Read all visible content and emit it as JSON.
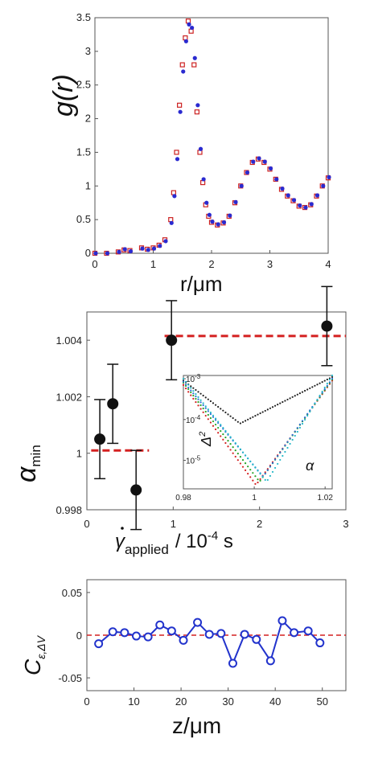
{
  "chart_data": [
    {
      "type": "scatter",
      "panel": "top",
      "xlabel": "r/μm",
      "ylabel": "g(r)",
      "xlim": [
        0,
        4
      ],
      "ylim": [
        0,
        3.5
      ],
      "xticks": [
        "0",
        "1",
        "2",
        "3",
        "4"
      ],
      "yticks": [
        "0",
        "0.5",
        "1",
        "1.5",
        "2",
        "2.5",
        "3",
        "3.5"
      ],
      "series": [
        {
          "marker": "open-square",
          "color": "#cc2222",
          "x": [
            0,
            0.2,
            0.4,
            0.5,
            0.6,
            0.8,
            0.9,
            1.0,
            1.1,
            1.2,
            1.3,
            1.35,
            1.4,
            1.45,
            1.5,
            1.55,
            1.6,
            1.65,
            1.7,
            1.75,
            1.8,
            1.85,
            1.9,
            1.95,
            2.0,
            2.1,
            2.2,
            2.3,
            2.4,
            2.5,
            2.6,
            2.7,
            2.8,
            2.9,
            3.0,
            3.1,
            3.2,
            3.3,
            3.4,
            3.5,
            3.6,
            3.7,
            3.8,
            3.9,
            4.0
          ],
          "y": [
            0,
            0,
            0.02,
            0.05,
            0.04,
            0.08,
            0.06,
            0.08,
            0.12,
            0.2,
            0.5,
            0.9,
            1.5,
            2.2,
            2.8,
            3.2,
            3.45,
            3.3,
            2.8,
            2.1,
            1.5,
            1.05,
            0.72,
            0.55,
            0.46,
            0.42,
            0.45,
            0.55,
            0.75,
            1.0,
            1.2,
            1.35,
            1.4,
            1.35,
            1.25,
            1.1,
            0.95,
            0.85,
            0.78,
            0.7,
            0.68,
            0.72,
            0.85,
            1.0,
            1.12
          ]
        },
        {
          "marker": "filled-dot",
          "color": "#2a2ad0",
          "x": [
            0,
            0.2,
            0.4,
            0.5,
            0.6,
            0.8,
            0.9,
            1.0,
            1.1,
            1.2,
            1.3,
            1.35,
            1.4,
            1.45,
            1.5,
            1.55,
            1.6,
            1.65,
            1.7,
            1.75,
            1.8,
            1.85,
            1.9,
            1.95,
            2.0,
            2.1,
            2.2,
            2.3,
            2.4,
            2.5,
            2.6,
            2.7,
            2.8,
            2.9,
            3.0,
            3.1,
            3.2,
            3.3,
            3.4,
            3.5,
            3.6,
            3.7,
            3.8,
            3.9,
            4.0
          ],
          "y": [
            0,
            0,
            0.02,
            0.06,
            0.03,
            0.07,
            0.05,
            0.07,
            0.11,
            0.18,
            0.45,
            0.85,
            1.4,
            2.1,
            2.7,
            3.15,
            3.4,
            3.35,
            2.9,
            2.2,
            1.55,
            1.1,
            0.75,
            0.57,
            0.47,
            0.43,
            0.46,
            0.56,
            0.76,
            1.0,
            1.2,
            1.36,
            1.41,
            1.36,
            1.26,
            1.1,
            0.96,
            0.86,
            0.79,
            0.71,
            0.68,
            0.73,
            0.86,
            1.0,
            1.13
          ]
        }
      ]
    },
    {
      "type": "scatter",
      "panel": "middle",
      "ylabel_main": "α",
      "ylabel_sub": "min",
      "xlabel_main": "γ",
      "xlabel_sub": "applied",
      "xlabel_tail": "/ 10",
      "xlabel_exp": "-4",
      "xlabel_unit": " s",
      "xlim": [
        0,
        3
      ],
      "ylim": [
        0.998,
        1.005
      ],
      "xticks": [
        "0",
        "1",
        "2",
        "3"
      ],
      "yticks": [
        "0.998",
        "1",
        "1.002",
        "1.004"
      ],
      "points": [
        {
          "x": 0.15,
          "y": 1.0005,
          "err": 0.0014
        },
        {
          "x": 0.3,
          "y": 1.00175,
          "err": 0.0014
        },
        {
          "x": 0.57,
          "y": 0.9987,
          "err": 0.0014
        },
        {
          "x": 0.98,
          "y": 1.004,
          "err": 0.0014
        },
        {
          "x": 2.78,
          "y": 1.0045,
          "err": 0.0014
        }
      ],
      "reference_lines": [
        {
          "x_from": 0.05,
          "x_to": 0.72,
          "y": 1.0001,
          "color": "#d42020"
        },
        {
          "x_from": 0.9,
          "x_to": 3.0,
          "y": 1.00415,
          "color": "#d42020"
        }
      ],
      "inset": {
        "xlabel": "α",
        "ylabel_main": "Δ",
        "ylabel_exp": "2",
        "xlim": [
          0.98,
          1.022
        ],
        "ylog": true,
        "ylim": [
          2e-06,
          0.0012
        ],
        "xticks": [
          "0.98",
          "1",
          "1.02"
        ],
        "yticks_main": [
          "10",
          "10",
          "10"
        ],
        "yticks_exp": [
          "-3",
          "-4",
          "-5"
        ],
        "series": [
          {
            "color": "#222222",
            "minimum_x": 0.996,
            "minimum_y": 8e-05,
            "left_y": 0.0009,
            "right_y": 0.0011
          },
          {
            "color": "#d42020",
            "minimum_x": 1.0005,
            "minimum_y": 2.5e-06,
            "left_y": 0.0007,
            "right_y": 0.0009
          },
          {
            "color": "#27a427",
            "minimum_x": 1.0015,
            "minimum_y": 3e-06,
            "left_y": 0.0008,
            "right_y": 0.00095
          },
          {
            "color": "#2b6fd6",
            "minimum_x": 1.0025,
            "minimum_y": 4e-06,
            "left_y": 0.00085,
            "right_y": 0.001
          },
          {
            "color": "#22b8c8",
            "minimum_x": 1.0035,
            "minimum_y": 3e-06,
            "left_y": 0.001,
            "right_y": 0.0012
          }
        ]
      }
    },
    {
      "type": "line",
      "panel": "bottom",
      "xlabel": "z/μm",
      "ylabel_main": "C",
      "ylabel_sub": "ε,ΔV",
      "xlim": [
        0,
        55
      ],
      "ylim": [
        -0.065,
        0.065
      ],
      "xticks": [
        "0",
        "10",
        "20",
        "30",
        "40",
        "50"
      ],
      "yticks": [
        "0.05",
        "0",
        "-0.05"
      ],
      "x": [
        2.5,
        5.5,
        8,
        10.5,
        13,
        15.5,
        18,
        20.5,
        23.5,
        26,
        28.5,
        31,
        33.5,
        36,
        39,
        41.5,
        44,
        47,
        49.5
      ],
      "y": [
        -0.01,
        0.004,
        0.003,
        -0.001,
        -0.002,
        0.012,
        0.005,
        -0.006,
        0.015,
        0.001,
        0.002,
        -0.033,
        0.001,
        -0.005,
        -0.03,
        0.017,
        0.003,
        0.005,
        -0.009
      ],
      "reference_y": 0,
      "line_color": "#2233cc",
      "ref_color": "#d42020"
    }
  ]
}
